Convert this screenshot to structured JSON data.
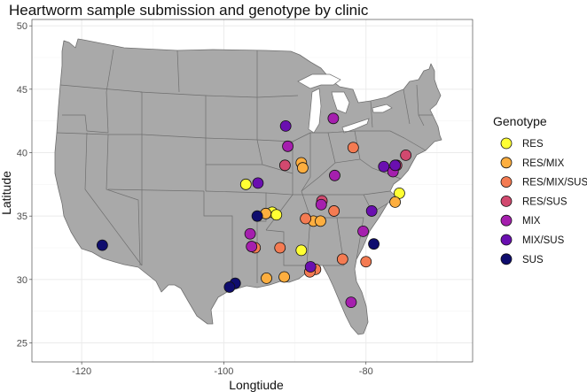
{
  "chart_data": {
    "type": "scatter",
    "title": "Heartworm sample submission and genotype by clinic",
    "xlabel": "Longtiude",
    "ylabel": "Latitude",
    "xlim": [
      -127,
      -65
    ],
    "ylim": [
      23.5,
      50.5
    ],
    "x_ticks": [
      -120,
      -100,
      -80
    ],
    "x_tick_labels": [
      "-120",
      "-100",
      "-80"
    ],
    "y_ticks": [
      25,
      30,
      35,
      40,
      45,
      50
    ],
    "y_tick_labels": [
      "25",
      "30",
      "35",
      "40",
      "45",
      "50"
    ],
    "grid": true,
    "legend_position": "right",
    "legend": {
      "title": "Genotype",
      "entries": [
        {
          "label": "RES",
          "color": "#ffff33"
        },
        {
          "label": "RES/MIX",
          "color": "#fdae3f"
        },
        {
          "label": "RES/MIX/SUS",
          "color": "#f47b52"
        },
        {
          "label": "RES/SUS",
          "color": "#d1496f"
        },
        {
          "label": "MIX",
          "color": "#a51fae"
        },
        {
          "label": "MIX/SUS",
          "color": "#6a0fb0"
        },
        {
          "label": "SUS",
          "color": "#0f0d6e"
        }
      ]
    },
    "basemap": {
      "fill": "#a9a9a9",
      "stroke": "#6f6f6f",
      "description_region": "contiguous United States"
    },
    "points": [
      {
        "x": -96.9,
        "y": 37.5,
        "genotype": "RES"
      },
      {
        "x": -93.2,
        "y": 35.3,
        "genotype": "RES"
      },
      {
        "x": -92.6,
        "y": 35.1,
        "genotype": "RES"
      },
      {
        "x": -75.3,
        "y": 36.8,
        "genotype": "RES"
      },
      {
        "x": -89.1,
        "y": 32.3,
        "genotype": "RES"
      },
      {
        "x": -94.1,
        "y": 35.2,
        "genotype": "RES/MIX"
      },
      {
        "x": -89.1,
        "y": 39.2,
        "genotype": "RES/MIX"
      },
      {
        "x": -88.9,
        "y": 38.8,
        "genotype": "RES/MIX"
      },
      {
        "x": -87.4,
        "y": 34.6,
        "genotype": "RES/MIX"
      },
      {
        "x": -86.4,
        "y": 34.6,
        "genotype": "RES/MIX"
      },
      {
        "x": -75.9,
        "y": 36.1,
        "genotype": "RES/MIX"
      },
      {
        "x": -91.5,
        "y": 30.2,
        "genotype": "RES/MIX"
      },
      {
        "x": -94.0,
        "y": 30.1,
        "genotype": "RES/MIX"
      },
      {
        "x": -95.6,
        "y": 32.5,
        "genotype": "RES/MIX/SUS"
      },
      {
        "x": -92.1,
        "y": 32.5,
        "genotype": "RES/MIX/SUS"
      },
      {
        "x": -88.5,
        "y": 34.8,
        "genotype": "RES/MIX/SUS"
      },
      {
        "x": -84.5,
        "y": 35.4,
        "genotype": "RES/MIX/SUS"
      },
      {
        "x": -81.8,
        "y": 40.4,
        "genotype": "RES/MIX/SUS"
      },
      {
        "x": -83.3,
        "y": 31.6,
        "genotype": "RES/MIX/SUS"
      },
      {
        "x": -80.0,
        "y": 31.4,
        "genotype": "RES/MIX/SUS"
      },
      {
        "x": -87.1,
        "y": 30.8,
        "genotype": "RES/MIX/SUS"
      },
      {
        "x": -87.9,
        "y": 30.6,
        "genotype": "RES/MIX/SUS"
      },
      {
        "x": -91.4,
        "y": 39.0,
        "genotype": "RES/SUS"
      },
      {
        "x": -86.2,
        "y": 36.2,
        "genotype": "RES/SUS"
      },
      {
        "x": -75.7,
        "y": 39.0,
        "genotype": "RES/SUS"
      },
      {
        "x": -74.4,
        "y": 39.8,
        "genotype": "RES/SUS"
      },
      {
        "x": -91.0,
        "y": 40.5,
        "genotype": "MIX"
      },
      {
        "x": -84.6,
        "y": 42.7,
        "genotype": "MIX"
      },
      {
        "x": -84.4,
        "y": 38.2,
        "genotype": "MIX"
      },
      {
        "x": -86.3,
        "y": 35.9,
        "genotype": "MIX"
      },
      {
        "x": -80.4,
        "y": 33.8,
        "genotype": "MIX"
      },
      {
        "x": -96.3,
        "y": 33.6,
        "genotype": "MIX"
      },
      {
        "x": -96.1,
        "y": 32.6,
        "genotype": "MIX"
      },
      {
        "x": -82.1,
        "y": 28.2,
        "genotype": "MIX"
      },
      {
        "x": -76.2,
        "y": 38.5,
        "genotype": "MIX"
      },
      {
        "x": -91.3,
        "y": 42.1,
        "genotype": "MIX/SUS"
      },
      {
        "x": -95.2,
        "y": 37.6,
        "genotype": "MIX/SUS"
      },
      {
        "x": -77.5,
        "y": 38.9,
        "genotype": "MIX/SUS"
      },
      {
        "x": -75.9,
        "y": 39.0,
        "genotype": "MIX/SUS"
      },
      {
        "x": -79.2,
        "y": 35.4,
        "genotype": "MIX/SUS"
      },
      {
        "x": -87.8,
        "y": 31.0,
        "genotype": "MIX/SUS"
      },
      {
        "x": -117.1,
        "y": 32.7,
        "genotype": "SUS"
      },
      {
        "x": -95.3,
        "y": 35.0,
        "genotype": "SUS"
      },
      {
        "x": -78.9,
        "y": 32.8,
        "genotype": "SUS"
      },
      {
        "x": -98.4,
        "y": 29.7,
        "genotype": "SUS"
      },
      {
        "x": -99.2,
        "y": 29.4,
        "genotype": "SUS"
      }
    ]
  }
}
